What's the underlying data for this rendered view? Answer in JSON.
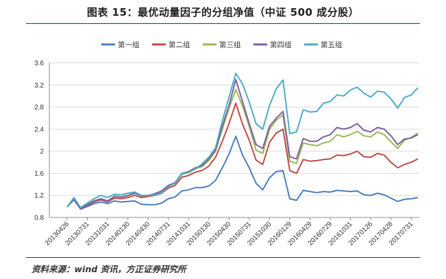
{
  "title": "图表 15：最优动量因子的分组净值（中证 500 成分股）",
  "source": "资料来源：wind 资讯，方正证券研究所",
  "chart_data": {
    "type": "line",
    "title": "图表 15：最优动量因子的分组净值（中证 500 成分股）",
    "xlabel": "",
    "ylabel": "",
    "ylim": [
      0.8,
      3.6
    ],
    "yticks": [
      0.8,
      1.2,
      1.6,
      2,
      2.4,
      2.8,
      3.2,
      3.6
    ],
    "ytick_labels": [
      "0.8",
      "1.2",
      "1.6",
      "2",
      "2.4",
      "2.8",
      "3.2",
      "3.6"
    ],
    "xtick_labels": [
      "20130426",
      "20130731",
      "20131031",
      "20140130",
      "20140430",
      "20140731",
      "20141031",
      "20150130",
      "20150430",
      "20150731",
      "20151030",
      "20160129",
      "20160429",
      "20160729",
      "20161031",
      "20170126",
      "20170428",
      "20170731"
    ],
    "grid": true,
    "legend_position": "top",
    "x": [
      "20130426",
      "20130531",
      "20130628",
      "20130731",
      "20130830",
      "20130930",
      "20131031",
      "20131129",
      "20131231",
      "20140130",
      "20140228",
      "20140331",
      "20140430",
      "20140530",
      "20140630",
      "20140731",
      "20140829",
      "20140930",
      "20141031",
      "20141128",
      "20141231",
      "20150130",
      "20150227",
      "20150331",
      "20150430",
      "20150529",
      "20150630",
      "20150731",
      "20150831",
      "20150930",
      "20151030",
      "20151130",
      "20151231",
      "20160129",
      "20160229",
      "20160331",
      "20160429",
      "20160531",
      "20160630",
      "20160729",
      "20160831",
      "20160930",
      "20161031",
      "20161130",
      "20161230",
      "20170126",
      "20170228",
      "20170331",
      "20170428",
      "20170531",
      "20170630",
      "20170731",
      "20170831"
    ],
    "series": [
      {
        "name": "第一组",
        "color": "#4a7ebb",
        "values": [
          0.99,
          1.12,
          0.95,
          1.0,
          1.05,
          1.08,
          1.05,
          1.1,
          1.08,
          1.09,
          1.1,
          1.04,
          1.03,
          1.03,
          1.06,
          1.14,
          1.17,
          1.28,
          1.3,
          1.34,
          1.34,
          1.37,
          1.47,
          1.7,
          1.95,
          2.27,
          1.93,
          1.7,
          1.42,
          1.3,
          1.52,
          1.63,
          1.65,
          1.14,
          1.11,
          1.29,
          1.27,
          1.25,
          1.27,
          1.26,
          1.29,
          1.28,
          1.27,
          1.28,
          1.21,
          1.2,
          1.24,
          1.21,
          1.15,
          1.09,
          1.13,
          1.14,
          1.16
        ]
      },
      {
        "name": "第二组",
        "color": "#be4b48",
        "values": [
          0.99,
          1.14,
          0.96,
          1.02,
          1.08,
          1.12,
          1.08,
          1.15,
          1.14,
          1.16,
          1.2,
          1.16,
          1.18,
          1.2,
          1.24,
          1.33,
          1.38,
          1.53,
          1.56,
          1.62,
          1.65,
          1.73,
          1.89,
          2.18,
          2.5,
          2.87,
          2.49,
          2.2,
          1.84,
          1.76,
          2.16,
          2.33,
          2.4,
          1.65,
          1.6,
          1.85,
          1.82,
          1.83,
          1.85,
          1.86,
          1.93,
          1.92,
          1.95,
          2.0,
          1.9,
          1.89,
          1.96,
          1.93,
          1.8,
          1.7,
          1.76,
          1.8,
          1.86
        ]
      },
      {
        "name": "第三组",
        "color": "#98b954",
        "values": [
          0.99,
          1.15,
          0.97,
          1.03,
          1.1,
          1.14,
          1.1,
          1.18,
          1.17,
          1.19,
          1.24,
          1.19,
          1.2,
          1.23,
          1.28,
          1.38,
          1.42,
          1.58,
          1.61,
          1.68,
          1.72,
          1.83,
          2.0,
          2.4,
          2.78,
          3.12,
          2.82,
          2.45,
          2.02,
          1.96,
          2.4,
          2.56,
          2.66,
          1.82,
          1.78,
          2.15,
          2.12,
          2.1,
          2.15,
          2.18,
          2.3,
          2.26,
          2.3,
          2.36,
          2.28,
          2.26,
          2.35,
          2.3,
          2.17,
          2.05,
          2.2,
          2.25,
          2.33
        ]
      },
      {
        "name": "第四组",
        "color": "#7d60a0",
        "values": [
          0.99,
          1.15,
          0.96,
          1.03,
          1.1,
          1.14,
          1.1,
          1.18,
          1.17,
          1.2,
          1.24,
          1.19,
          1.2,
          1.23,
          1.28,
          1.38,
          1.43,
          1.6,
          1.63,
          1.7,
          1.74,
          1.86,
          2.02,
          2.45,
          2.83,
          3.3,
          2.9,
          2.5,
          2.12,
          2.05,
          2.45,
          2.6,
          2.72,
          1.9,
          1.86,
          2.23,
          2.18,
          2.18,
          2.26,
          2.3,
          2.43,
          2.4,
          2.43,
          2.5,
          2.38,
          2.35,
          2.43,
          2.4,
          2.28,
          2.12,
          2.22,
          2.24,
          2.3
        ]
      },
      {
        "name": "第五组",
        "color": "#4bacc6",
        "values": [
          0.99,
          1.16,
          0.98,
          1.06,
          1.14,
          1.2,
          1.16,
          1.22,
          1.21,
          1.24,
          1.26,
          1.2,
          1.2,
          1.21,
          1.25,
          1.36,
          1.42,
          1.6,
          1.62,
          1.68,
          1.77,
          1.89,
          2.06,
          2.55,
          2.98,
          3.41,
          3.22,
          2.89,
          2.5,
          2.4,
          2.83,
          3.13,
          3.29,
          2.32,
          2.35,
          2.75,
          2.71,
          2.72,
          2.87,
          2.9,
          3.02,
          3.0,
          3.11,
          3.16,
          3.05,
          2.98,
          3.09,
          3.07,
          2.95,
          2.78,
          2.97,
          3.02,
          3.15
        ]
      }
    ]
  }
}
